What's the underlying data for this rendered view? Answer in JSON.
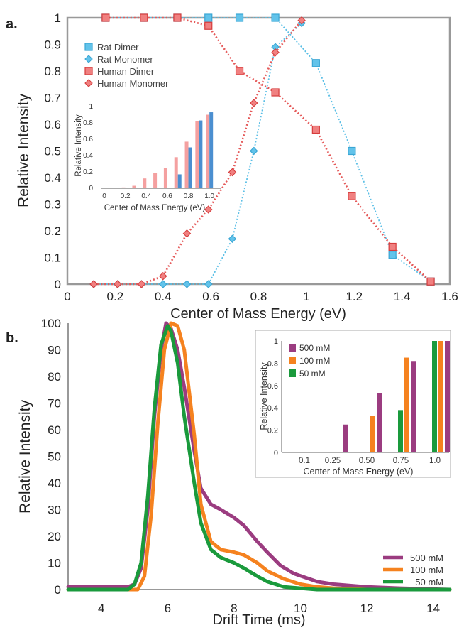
{
  "panel_labels": {
    "a": "a.",
    "b": "b."
  },
  "chart_data": [
    {
      "type": "line",
      "xlabel": "Center of Mass Energy (eV)",
      "ylabel": "Relative Intensity",
      "xlim": [
        0,
        1.6
      ],
      "ylim": [
        0,
        1
      ],
      "xticks": [
        "0",
        "0.2",
        "0.4",
        "0.6",
        "0.8",
        "1",
        "1.2",
        "1.4",
        "1.6"
      ],
      "yticks": [
        "0",
        "0.1",
        "0.2",
        "0.3",
        "0.4",
        "0.5",
        "0.6",
        "0.7",
        "0.8",
        "0.9",
        "1"
      ],
      "grid": false,
      "legend_position": "top-left",
      "series": [
        {
          "name": "Rat Dimer",
          "color": "#5bbfe6",
          "marker": "square",
          "line": "dotted",
          "x": [
            0.16,
            0.32,
            0.46,
            0.59,
            0.72,
            0.87,
            1.04,
            1.19,
            1.36,
            1.52
          ],
          "y": [
            1,
            1,
            1,
            1,
            1,
            1,
            0.83,
            0.5,
            0.11,
            0.01
          ]
        },
        {
          "name": "Rat Monomer",
          "color": "#5bbfe6",
          "marker": "diamond",
          "line": "dotted",
          "x": [
            0.11,
            0.21,
            0.31,
            0.4,
            0.5,
            0.59,
            0.69,
            0.78,
            0.87,
            0.98
          ],
          "y": [
            0,
            0,
            0,
            0,
            0,
            0,
            0.17,
            0.5,
            0.89,
            0.98
          ]
        },
        {
          "name": "Human Dimer",
          "color": "#e55a5a",
          "marker": "square",
          "line": "dotted",
          "x": [
            0.16,
            0.32,
            0.46,
            0.59,
            0.72,
            0.87,
            1.04,
            1.19,
            1.36,
            1.52
          ],
          "y": [
            1,
            1,
            1,
            0.97,
            0.8,
            0.72,
            0.58,
            0.33,
            0.14,
            0.01
          ]
        },
        {
          "name": "Human Monomer",
          "color": "#e55a5a",
          "marker": "diamond",
          "line": "dotted",
          "x": [
            0.11,
            0.21,
            0.31,
            0.4,
            0.5,
            0.59,
            0.69,
            0.78,
            0.87,
            0.98
          ],
          "y": [
            0,
            0,
            0,
            0.03,
            0.19,
            0.28,
            0.42,
            0.68,
            0.87,
            0.99
          ]
        }
      ]
    },
    {
      "type": "bar",
      "xlabel": "Center of Mass Energy (eV)",
      "ylabel": "Relative Intensity",
      "xlim": [
        0,
        1.1
      ],
      "ylim": [
        0,
        1
      ],
      "xticks": [
        "0",
        "0.2",
        "0.4",
        "0.6",
        "0.8",
        "1.0"
      ],
      "yticks": [
        "0",
        "0.2",
        "0.4",
        "0.6",
        "0.8",
        "1"
      ],
      "series": [
        {
          "name": "Human",
          "color": "#f4a0a0",
          "x": [
            0.2,
            0.3,
            0.4,
            0.5,
            0.6,
            0.7,
            0.8,
            0.9,
            1.0
          ],
          "values": [
            0.01,
            0.03,
            0.12,
            0.19,
            0.25,
            0.38,
            0.57,
            0.82,
            0.9
          ]
        },
        {
          "name": "Rat",
          "color": "#4b8fd0",
          "x": [
            0.7,
            0.8,
            0.9,
            1.0
          ],
          "values": [
            0.17,
            0.5,
            0.83,
            0.93
          ]
        }
      ]
    },
    {
      "type": "line",
      "xlabel": "Drift Time (ms)",
      "ylabel": "Relative Intensity",
      "xlim": [
        3,
        14.5
      ],
      "ylim": [
        0,
        100
      ],
      "xticks": [
        "4",
        "6",
        "8",
        "10",
        "12",
        "14"
      ],
      "yticks": [
        "0",
        "10",
        "20",
        "30",
        "40",
        "50",
        "60",
        "70",
        "80",
        "90",
        "100"
      ],
      "grid": false,
      "legend_position": "bottom-right",
      "series": [
        {
          "name": "500 mM",
          "color": "#9b3c80",
          "x": [
            3,
            4.8,
            5.0,
            5.2,
            5.4,
            5.6,
            5.8,
            5.95,
            6.1,
            6.3,
            6.5,
            6.8,
            7.0,
            7.3,
            7.6,
            8.0,
            8.3,
            8.7,
            9.0,
            9.4,
            9.8,
            10.5,
            11,
            12,
            13,
            14.5
          ],
          "y": [
            1,
            1,
            2,
            8,
            30,
            65,
            90,
            100,
            98,
            90,
            76,
            52,
            38,
            32,
            30,
            27,
            24,
            18,
            14,
            9,
            6,
            3,
            2,
            1,
            0.5,
            0
          ]
        },
        {
          "name": "100 mM",
          "color": "#f5821f",
          "x": [
            3,
            5.1,
            5.3,
            5.5,
            5.7,
            5.9,
            6.1,
            6.3,
            6.5,
            6.8,
            7.0,
            7.3,
            7.6,
            8.0,
            8.3,
            8.7,
            9.0,
            9.5,
            10.0,
            10.5,
            11,
            12,
            14.5
          ],
          "y": [
            0,
            0,
            5,
            28,
            62,
            90,
            100,
            99,
            90,
            58,
            32,
            18,
            15,
            14,
            13,
            10,
            7,
            4,
            2,
            1,
            0.5,
            0,
            0
          ]
        },
        {
          "name": "50 mM",
          "color": "#1a9a3c",
          "x": [
            3,
            4.8,
            5.0,
            5.2,
            5.4,
            5.6,
            5.8,
            6.0,
            6.1,
            6.3,
            6.5,
            6.8,
            7.0,
            7.3,
            7.6,
            8.0,
            8.3,
            8.7,
            9.0,
            9.5,
            10.0,
            10.5,
            11,
            14.5
          ],
          "y": [
            0,
            0,
            2,
            10,
            35,
            68,
            92,
            99,
            97,
            85,
            65,
            40,
            25,
            15,
            12,
            10,
            8,
            5,
            3,
            1,
            0.5,
            0,
            0,
            0
          ]
        }
      ]
    },
    {
      "type": "bar",
      "xlabel": "Center of Mass Energy (eV)",
      "ylabel": "Relative Intensity",
      "ylim": [
        0,
        1
      ],
      "categories": [
        "0.1",
        "0.25",
        "0.50",
        "0.75",
        "1.0"
      ],
      "yticks": [
        "0",
        "0.2",
        "0.4",
        "0.6",
        "0.8",
        "1"
      ],
      "legend_position": "top-left",
      "series": [
        {
          "name": "500 mM",
          "color": "#9b3c80",
          "values": [
            0,
            0.25,
            0.53,
            0.82,
            1.0
          ]
        },
        {
          "name": "100 mM",
          "color": "#f5821f",
          "values": [
            0,
            0,
            0.33,
            0.85,
            1.0
          ]
        },
        {
          "name": "50 mM",
          "color": "#1a9a3c",
          "values": [
            0,
            0,
            0,
            0.38,
            1.0
          ]
        }
      ]
    }
  ]
}
